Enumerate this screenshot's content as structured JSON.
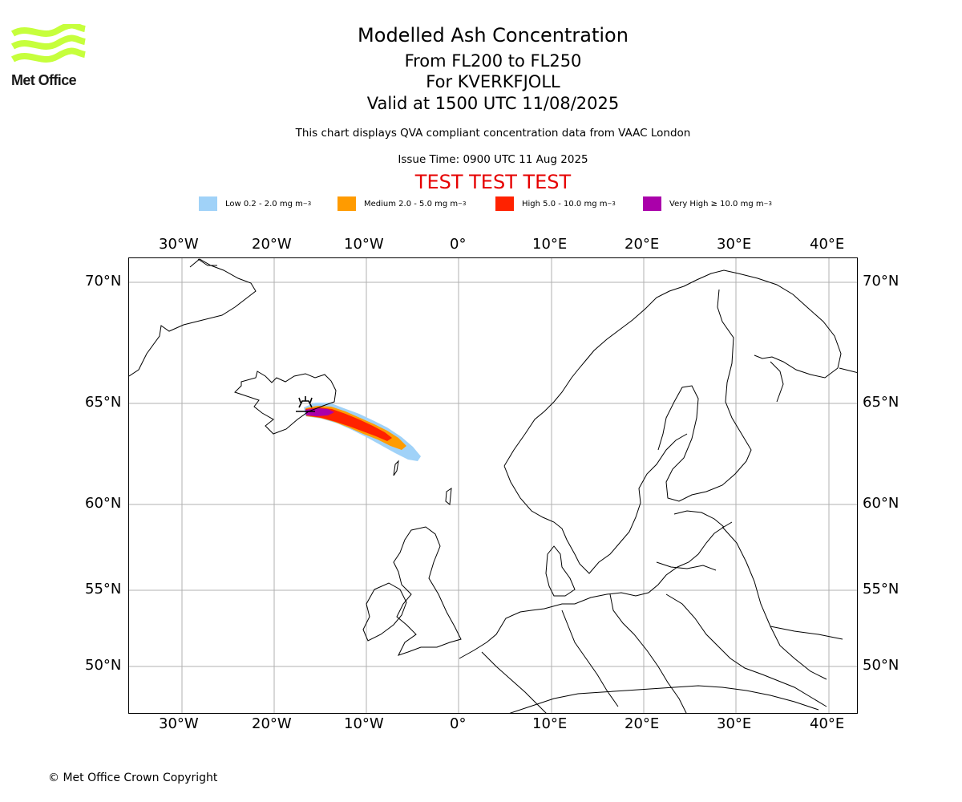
{
  "logo": {
    "text": "Met Office",
    "color": "#c6ff3c"
  },
  "titles": {
    "main": "Modelled Ash Concentration",
    "levels": "From FL200 to FL250",
    "volcano": "For KVERKFJOLL",
    "valid": "Valid at 1500 UTC 11/08/2025"
  },
  "subtitle": "This chart displays QVA compliant concentration data from VAAC London",
  "issue_time": "Issue Time: 0900 UTC 11 Aug 2025",
  "test_banner": "TEST TEST TEST",
  "legend": [
    {
      "pre": "Low 0.2 - 2.0 mg m",
      "sup": "−3",
      "color": "#a0d2f8"
    },
    {
      "pre": "Medium 2.0 - 5.0 mg m",
      "sup": "−3",
      "color": "#ff9b00"
    },
    {
      "pre": "High 5.0 - 10.0 mg m",
      "sup": "−3",
      "color": "#ff2200"
    },
    {
      "pre": "Very High  ≥  10.0 mg m",
      "sup": "−3",
      "color": "#aa00aa"
    }
  ],
  "map": {
    "lon_ticks": [
      "30°W",
      "20°W",
      "10°W",
      "0°",
      "10°E",
      "20°E",
      "30°E",
      "40°E"
    ],
    "lat_ticks": [
      "70°N",
      "65°N",
      "60°N",
      "55°N",
      "50°N"
    ],
    "volcano_icon": "volcano-icon",
    "grid_color": "#b0b0b0"
  },
  "copyright": "© Met Office Crown Copyright"
}
